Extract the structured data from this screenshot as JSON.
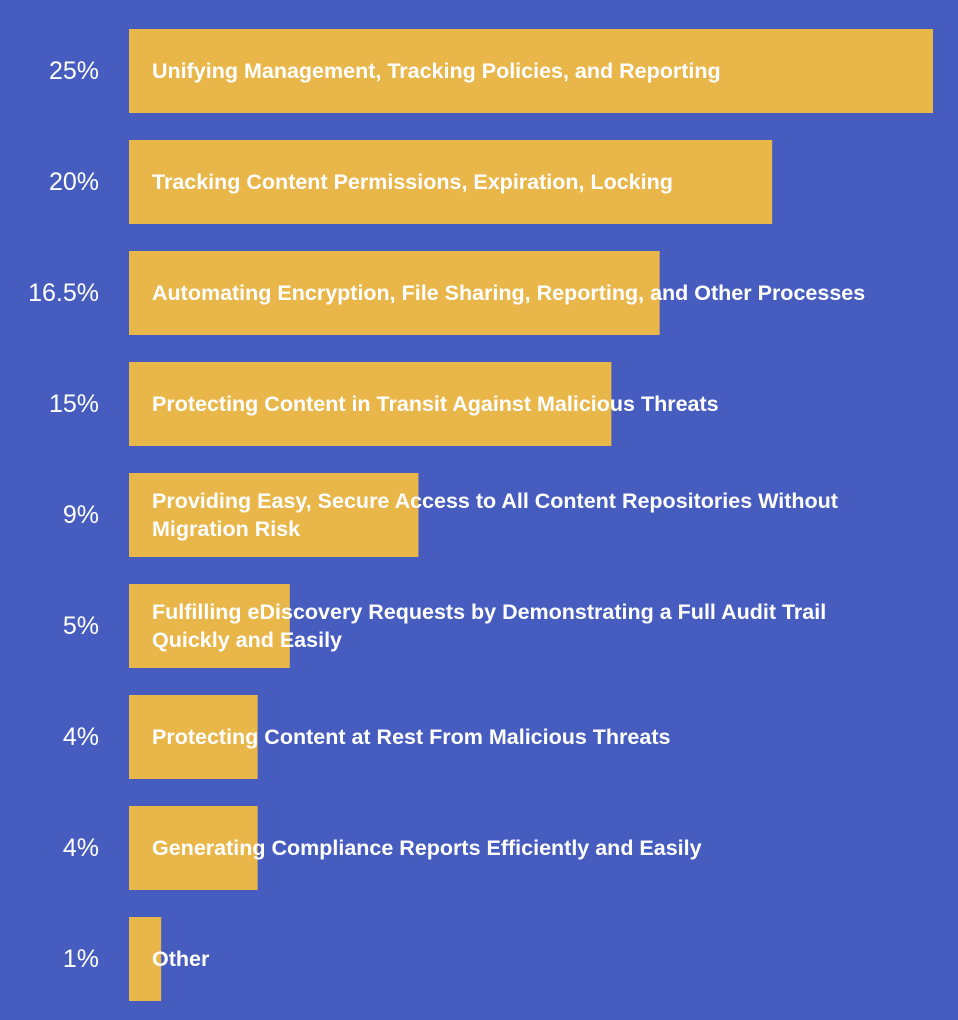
{
  "chart_data": {
    "type": "bar",
    "orientation": "horizontal",
    "title": "",
    "xlabel": "",
    "ylabel": "",
    "xlim": [
      0,
      25
    ],
    "grid": false,
    "legend": "none",
    "colors": {
      "background": "#465cbf",
      "bar": "#e9b64a",
      "text": "#ffffff"
    },
    "items": [
      {
        "value": 25,
        "value_label": "25%",
        "label_lines": [
          "Unifying Management, Tracking Policies, and Reporting"
        ]
      },
      {
        "value": 20,
        "value_label": "20%",
        "label_lines": [
          "Tracking Content Permissions, Expiration, Locking"
        ]
      },
      {
        "value": 16.5,
        "value_label": "16.5%",
        "label_lines": [
          "Automating Encryption, File Sharing, Reporting, and Other Processes"
        ]
      },
      {
        "value": 15,
        "value_label": "15%",
        "label_lines": [
          "Protecting Content in Transit Against Malicious Threats"
        ]
      },
      {
        "value": 9,
        "value_label": "9%",
        "label_lines": [
          "Providing Easy, Secure Access to All Content Repositories Without",
          "Migration Risk"
        ]
      },
      {
        "value": 5,
        "value_label": "5%",
        "label_lines": [
          "Fulfilling eDiscovery Requests by Demonstrating a Full Audit Trail",
          "Quickly and Easily"
        ]
      },
      {
        "value": 4,
        "value_label": "4%",
        "label_lines": [
          "Protecting Content at Rest From Malicious Threats"
        ]
      },
      {
        "value": 4,
        "value_label": "4%",
        "label_lines": [
          "Generating Compliance Reports Efficiently and Easily"
        ]
      },
      {
        "value": 1,
        "value_label": "1%",
        "label_lines": [
          "Other"
        ]
      }
    ]
  }
}
